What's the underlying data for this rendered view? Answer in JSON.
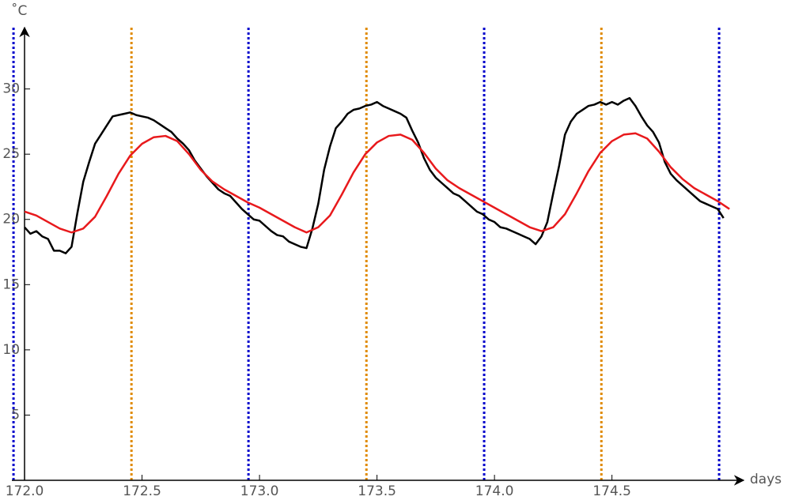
{
  "chart_data": {
    "type": "line",
    "x_label": "days",
    "y_label": "˚C",
    "xlim": [
      171.946,
      175.06
    ],
    "ylim": [
      0,
      34.7
    ],
    "xticks": [
      {
        "value": 172,
        "label": "172.0"
      },
      172.5,
      {
        "value": 173,
        "label": "173.0"
      },
      173.5,
      {
        "value": 174,
        "label": "174.0"
      },
      174.5
    ],
    "yticks": [
      5,
      10,
      15,
      20,
      25,
      30
    ],
    "series": [
      {
        "color": "#000000",
        "x": [
          172,
          172.025,
          172.05,
          172.075,
          172.1,
          172.125,
          172.15,
          172.175,
          172.2,
          172.225,
          172.25,
          172.275,
          172.3,
          172.325,
          172.35,
          172.375,
          172.4,
          172.425,
          172.45,
          172.475,
          172.5,
          172.525,
          172.55,
          172.575,
          172.6,
          172.625,
          172.65,
          172.675,
          172.7,
          172.725,
          172.75,
          172.775,
          172.8,
          172.825,
          172.85,
          172.875,
          172.9,
          172.925,
          172.95,
          172.975,
          173,
          173.025,
          173.05,
          173.075,
          173.1,
          173.125,
          173.15,
          173.175,
          173.2,
          173.225,
          173.25,
          173.275,
          173.3,
          173.325,
          173.35,
          173.375,
          173.4,
          173.425,
          173.45,
          173.475,
          173.5,
          173.525,
          173.55,
          173.575,
          173.6,
          173.625,
          173.65,
          173.675,
          173.7,
          173.725,
          173.75,
          173.775,
          173.8,
          173.825,
          173.85,
          173.875,
          173.9,
          173.925,
          173.95,
          173.975,
          174,
          174.025,
          174.05,
          174.075,
          174.1,
          174.125,
          174.15,
          174.175,
          174.2,
          174.225,
          174.25,
          174.275,
          174.3,
          174.325,
          174.35,
          174.375,
          174.4,
          174.425,
          174.45,
          174.475,
          174.5,
          174.525,
          174.55,
          174.575,
          174.6,
          174.625,
          174.65,
          174.675,
          174.7,
          174.725,
          174.75,
          174.775,
          174.8,
          174.825,
          174.85,
          174.875,
          174.9,
          174.925,
          174.95,
          174.975
        ],
        "values": [
          19.4,
          18.9,
          19.1,
          18.7,
          18.5,
          17.6,
          17.6,
          17.4,
          17.9,
          20.5,
          22.9,
          24.4,
          25.8,
          26.5,
          27.2,
          27.9,
          28.0,
          28.1,
          28.2,
          28.0,
          27.9,
          27.8,
          27.6,
          27.3,
          27.0,
          26.7,
          26.2,
          25.8,
          25.3,
          24.5,
          23.9,
          23.3,
          22.8,
          22.3,
          22.0,
          21.8,
          21.3,
          20.8,
          20.4,
          20.0,
          19.9,
          19.5,
          19.1,
          18.8,
          18.7,
          18.3,
          18.1,
          17.9,
          17.8,
          19.3,
          21.2,
          23.8,
          25.6,
          27.0,
          27.5,
          28.1,
          28.4,
          28.5,
          28.7,
          28.8,
          29.0,
          28.7,
          28.5,
          28.3,
          28.1,
          27.8,
          26.8,
          25.9,
          24.7,
          23.8,
          23.2,
          22.8,
          22.4,
          22.0,
          21.8,
          21.4,
          21.0,
          20.6,
          20.4,
          20.0,
          19.8,
          19.4,
          19.3,
          19.1,
          18.9,
          18.7,
          18.5,
          18.1,
          18.7,
          19.8,
          22.0,
          24.1,
          26.5,
          27.5,
          28.1,
          28.4,
          28.7,
          28.8,
          29.0,
          28.8,
          29.0,
          28.8,
          29.1,
          29.3,
          28.7,
          27.9,
          27.2,
          26.7,
          25.9,
          24.4,
          23.5,
          23.0,
          22.6,
          22.2,
          21.8,
          21.4,
          21.2,
          21.0,
          20.8,
          20.1
        ]
      },
      {
        "color": "#e8191c",
        "x": [
          172,
          172.05,
          172.1,
          172.15,
          172.2,
          172.25,
          172.3,
          172.35,
          172.4,
          172.45,
          172.5,
          172.55,
          172.6,
          172.65,
          172.7,
          172.75,
          172.8,
          172.85,
          172.9,
          172.95,
          173,
          173.05,
          173.1,
          173.15,
          173.2,
          173.25,
          173.3,
          173.35,
          173.4,
          173.45,
          173.5,
          173.55,
          173.6,
          173.65,
          173.7,
          173.75,
          173.8,
          173.85,
          173.9,
          173.95,
          174,
          174.05,
          174.1,
          174.15,
          174.2,
          174.25,
          174.3,
          174.35,
          174.4,
          174.45,
          174.5,
          174.55,
          174.6,
          174.65,
          174.7,
          174.75,
          174.8,
          174.85,
          174.9,
          174.95,
          175
        ],
        "values": [
          20.6,
          20.3,
          19.8,
          19.3,
          19.0,
          19.3,
          20.2,
          21.8,
          23.5,
          24.9,
          25.8,
          26.3,
          26.4,
          26.0,
          25.0,
          23.8,
          22.9,
          22.3,
          21.8,
          21.3,
          20.9,
          20.4,
          19.9,
          19.4,
          19.0,
          19.4,
          20.3,
          21.9,
          23.6,
          25.0,
          25.9,
          26.4,
          26.5,
          26.1,
          25.1,
          23.9,
          23.0,
          22.4,
          21.9,
          21.4,
          20.9,
          20.4,
          19.9,
          19.4,
          19.1,
          19.4,
          20.4,
          22.0,
          23.7,
          25.1,
          26.0,
          26.5,
          26.6,
          26.2,
          25.2,
          24.0,
          23.1,
          22.4,
          21.9,
          21.4,
          20.8
        ]
      }
    ],
    "vlines": [
      {
        "color": "#0000cc",
        "x": [
          171.953,
          172.953,
          173.956,
          174.956
        ]
      },
      {
        "color": "#e08a00",
        "x": [
          172.455,
          173.455,
          174.455
        ]
      }
    ]
  }
}
